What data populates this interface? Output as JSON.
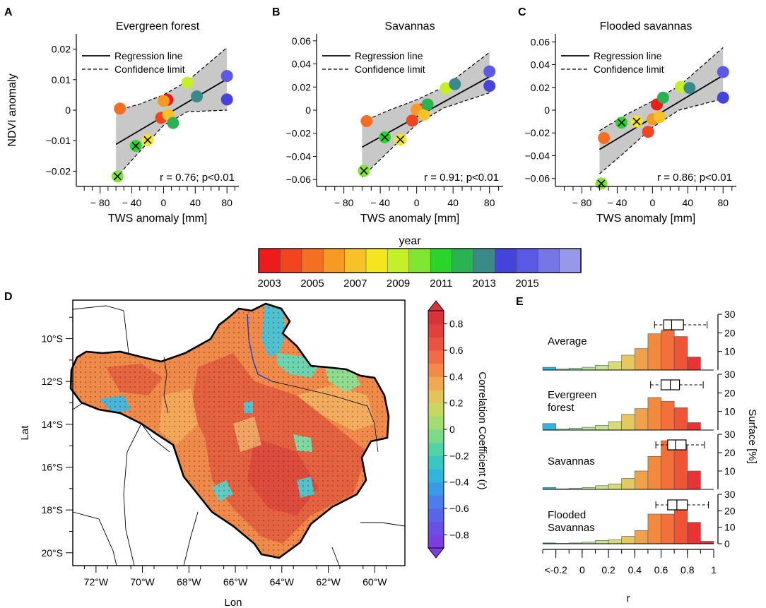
{
  "panel_letters": {
    "a": "A",
    "b": "B",
    "c": "C",
    "d": "D",
    "e": "E"
  },
  "scatter_common": {
    "xlabel": "TWS anomaly [mm]",
    "ylabel": "NDVI anomaly",
    "xticks": [
      -80,
      -40,
      0,
      40,
      80
    ],
    "xtick_labels": [
      "− 80",
      "− 40",
      "0",
      "40",
      "80"
    ],
    "legend_regression": "Regression line",
    "legend_confidence": "Confidence limit",
    "year_colors": [
      "#ee1b1b",
      "#f2451f",
      "#f46f22",
      "#f69a24",
      "#f7c229",
      "#f3e61e",
      "#c5ef26",
      "#7fe733",
      "#2ad52b",
      "#2bb253",
      "#3a8a8a",
      "#4444dd",
      "#5a5ae6",
      "#7676e6",
      "#9898ea"
    ]
  },
  "colorbar_year": {
    "title": "year",
    "labels": [
      "2003",
      "2005",
      "2007",
      "2009",
      "2011",
      "2013",
      "2015"
    ]
  },
  "chart_data": [
    {
      "type": "scatter",
      "title": "Evergreen forest",
      "stat": "r = 0.76; p<0.01",
      "xlim": [
        -110,
        95
      ],
      "ylim": [
        -0.025,
        0.025
      ],
      "yticks": [
        -0.02,
        -0.01,
        0,
        0.01,
        0.02
      ],
      "ytick_labels": [
        "−0.02",
        "−0.01",
        "0",
        "0.01",
        "0.02"
      ],
      "regression": {
        "x": [
          -60,
          80
        ],
        "y": [
          -0.0112,
          0.0102
        ]
      },
      "ci_upper": [
        [
          -60,
          -0.0002
        ],
        [
          -30,
          0.002
        ],
        [
          0,
          0.005
        ],
        [
          30,
          0.0095
        ],
        [
          80,
          0.0205
        ]
      ],
      "ci_lower": [
        [
          -60,
          -0.0222
        ],
        [
          -30,
          -0.0135
        ],
        [
          0,
          -0.005
        ],
        [
          30,
          -0.0005
        ],
        [
          80,
          0.0
        ]
      ],
      "points": [
        {
          "year": 2003,
          "x": 5,
          "y": 0.0034,
          "cross": false
        },
        {
          "year": 2004,
          "x": -3,
          "y": -0.0025,
          "cross": false
        },
        {
          "year": 2005,
          "x": -55,
          "y": 0.0005,
          "cross": false
        },
        {
          "year": 2006,
          "x": 0,
          "y": 0.003,
          "cross": false
        },
        {
          "year": 2007,
          "x": 6,
          "y": -0.0015,
          "cross": false
        },
        {
          "year": 2008,
          "x": -20,
          "y": -0.0098,
          "cross": true
        },
        {
          "year": 2009,
          "x": 30,
          "y": 0.009,
          "cross": false
        },
        {
          "year": 2010,
          "x": -58,
          "y": -0.0217,
          "cross": true
        },
        {
          "year": 2011,
          "x": -35,
          "y": -0.0117,
          "cross": true
        },
        {
          "year": 2012,
          "x": 12,
          "y": -0.0042,
          "cross": false
        },
        {
          "year": 2013,
          "x": 42,
          "y": 0.0045,
          "cross": false
        },
        {
          "year": 2014,
          "x": 80,
          "y": 0.0035,
          "cross": false
        },
        {
          "year": 2015,
          "x": 80,
          "y": 0.0112,
          "cross": false
        }
      ]
    },
    {
      "type": "scatter",
      "title": "Savannas",
      "stat": "r = 0.91; p<0.01",
      "xlim": [
        -110,
        95
      ],
      "ylim": [
        -0.066,
        0.066
      ],
      "yticks": [
        -0.06,
        -0.04,
        -0.02,
        0,
        0.02,
        0.04,
        0.06
      ],
      "ytick_labels": [
        "−0.06",
        "−0.04",
        "−0.02",
        "0",
        "0.02",
        "0.04",
        "0.06"
      ],
      "regression": {
        "x": [
          -60,
          80
        ],
        "y": [
          -0.032,
          0.029
        ]
      },
      "ci_upper": [
        [
          -60,
          -0.01
        ],
        [
          -30,
          0.0
        ],
        [
          0,
          0.009
        ],
        [
          30,
          0.02
        ],
        [
          80,
          0.05
        ]
      ],
      "ci_lower": [
        [
          -60,
          -0.058
        ],
        [
          -30,
          -0.035
        ],
        [
          0,
          -0.012
        ],
        [
          30,
          0.002
        ],
        [
          80,
          0.015
        ]
      ],
      "points": [
        {
          "year": 2003,
          "x": 5,
          "y": 0.0005,
          "cross": false
        },
        {
          "year": 2004,
          "x": -5,
          "y": -0.009,
          "cross": false
        },
        {
          "year": 2005,
          "x": -55,
          "y": -0.0095,
          "cross": false
        },
        {
          "year": 2006,
          "x": 0,
          "y": 0.0005,
          "cross": false
        },
        {
          "year": 2007,
          "x": 8,
          "y": -0.004,
          "cross": false
        },
        {
          "year": 2008,
          "x": -18,
          "y": -0.0255,
          "cross": true
        },
        {
          "year": 2009,
          "x": 32,
          "y": 0.019,
          "cross": false
        },
        {
          "year": 2010,
          "x": -58,
          "y": -0.0525,
          "cross": true
        },
        {
          "year": 2011,
          "x": -35,
          "y": -0.0235,
          "cross": true
        },
        {
          "year": 2012,
          "x": 12,
          "y": 0.005,
          "cross": false
        },
        {
          "year": 2013,
          "x": 42,
          "y": 0.0225,
          "cross": false
        },
        {
          "year": 2014,
          "x": 80,
          "y": 0.021,
          "cross": false
        },
        {
          "year": 2015,
          "x": 80,
          "y": 0.0335,
          "cross": false
        }
      ]
    },
    {
      "type": "scatter",
      "title": "Flooded savannas",
      "stat": "r = 0.86; p<0.01",
      "xlim": [
        -110,
        95
      ],
      "ylim": [
        -0.067,
        0.067
      ],
      "yticks": [
        -0.06,
        -0.04,
        -0.02,
        0,
        0.02,
        0.04,
        0.06
      ],
      "ytick_labels": [
        "−0.06",
        "−0.04",
        "−0.02",
        "0",
        "0.02",
        "0.04",
        "0.06"
      ],
      "regression": {
        "x": [
          -60,
          80
        ],
        "y": [
          -0.0345,
          0.0305
        ]
      },
      "ci_upper": [
        [
          -60,
          -0.018
        ],
        [
          -30,
          -0.004
        ],
        [
          0,
          0.008
        ],
        [
          30,
          0.021
        ],
        [
          80,
          0.055
        ]
      ],
      "ci_lower": [
        [
          -60,
          -0.056
        ],
        [
          -30,
          -0.036
        ],
        [
          0,
          -0.015
        ],
        [
          30,
          0.0
        ],
        [
          80,
          0.01
        ]
      ],
      "points": [
        {
          "year": 2003,
          "x": 5,
          "y": 0.005,
          "cross": false
        },
        {
          "year": 2004,
          "x": -5,
          "y": -0.019,
          "cross": false
        },
        {
          "year": 2005,
          "x": -55,
          "y": -0.0245,
          "cross": false
        },
        {
          "year": 2006,
          "x": 0,
          "y": -0.008,
          "cross": false
        },
        {
          "year": 2007,
          "x": 8,
          "y": -0.006,
          "cross": false
        },
        {
          "year": 2008,
          "x": -18,
          "y": -0.01,
          "cross": true
        },
        {
          "year": 2009,
          "x": 32,
          "y": 0.0205,
          "cross": false
        },
        {
          "year": 2010,
          "x": -58,
          "y": -0.0645,
          "cross": true
        },
        {
          "year": 2011,
          "x": -35,
          "y": -0.011,
          "cross": true
        },
        {
          "year": 2012,
          "x": 12,
          "y": 0.011,
          "cross": false
        },
        {
          "year": 2013,
          "x": 42,
          "y": 0.0195,
          "cross": false
        },
        {
          "year": 2014,
          "x": 80,
          "y": 0.011,
          "cross": false
        },
        {
          "year": 2015,
          "x": 80,
          "y": 0.0335,
          "cross": false
        }
      ]
    },
    {
      "type": "heatmap",
      "title": "",
      "xlabel": "Lon",
      "ylabel": "Lat",
      "xlim": [
        -73,
        -58.7
      ],
      "ylim": [
        -20.6,
        -8.2
      ],
      "x_tick_labels": [
        "72°W",
        "70°W",
        "68°W",
        "66°W",
        "64°W",
        "62°W",
        "60°W"
      ],
      "y_tick_labels": [
        "10°S",
        "12°S",
        "14°S",
        "16°S",
        "18°S",
        "20°S"
      ],
      "colorbar_label": "Correlation Coefficient (r)",
      "colorbar_ticks": [
        -0.8,
        -0.6,
        -0.4,
        -0.2,
        0,
        0.2,
        0.4,
        0.6,
        0.8
      ],
      "colorbar_tick_labels": [
        "−0.8",
        "−0.6",
        "−0.4",
        "−0.2",
        "0",
        "0.2",
        "0.4",
        "0.6",
        "0.8"
      ],
      "colorbar_range": [
        -0.9,
        0.9
      ],
      "colorbar_colors": [
        "#7b3fe0",
        "#6b4ee6",
        "#5a64e8",
        "#4a7fea",
        "#3c99e6",
        "#33b4dc",
        "#39c7c4",
        "#52d3a6",
        "#7bd98a",
        "#a2dc72",
        "#c6d862",
        "#e2c45a",
        "#f0a852",
        "#f28a4a",
        "#f06c44",
        "#ea5340",
        "#e2403d",
        "#d8333b"
      ]
    },
    {
      "type": "bar",
      "title": "",
      "xlabel": "r",
      "ylabel": "Surface [%]",
      "x_tick_labels": [
        "<-0.2",
        "0",
        "0.2",
        "0.4",
        "0.6",
        "0.8",
        "1"
      ],
      "y_tick_labels": [
        "0",
        "10",
        "20",
        "30"
      ],
      "ylim": [
        0,
        30
      ],
      "bin_edges": [
        -0.3,
        -0.2,
        -0.1,
        0.0,
        0.1,
        0.2,
        0.3,
        0.4,
        0.5,
        0.6,
        0.7,
        0.8,
        0.9,
        1.0
      ],
      "bin_colors": [
        "#34b5dc",
        "#7fd9b5",
        "#a0e2a4",
        "#b5e498",
        "#c7e58a",
        "#d8dc78",
        "#e4c860",
        "#f0a24a",
        "#f28b3f",
        "#f2703a",
        "#ef5437",
        "#e83434",
        "#e03133"
      ],
      "series": [
        {
          "name": "Average",
          "values": [
            1.5,
            0.5,
            1.0,
            1.5,
            2.5,
            4.5,
            8.0,
            11.5,
            19.5,
            21.5,
            18.0,
            7.0,
            0.0
          ]
        },
        {
          "name": "Evergreen\nforest",
          "values": [
            3.5,
            0.5,
            1.0,
            1.5,
            2.5,
            4.5,
            8.5,
            11.5,
            17.5,
            15.5,
            12.0,
            4.0,
            0.0
          ]
        },
        {
          "name": "Savannas",
          "values": [
            1.0,
            0.3,
            0.6,
            1.0,
            2.0,
            3.0,
            6.0,
            10.0,
            18.0,
            26.5,
            24.0,
            10.0,
            0.0
          ]
        },
        {
          "name": "Flooded\nSavannas",
          "values": [
            0.5,
            0.2,
            0.5,
            1.0,
            2.0,
            2.5,
            4.5,
            8.0,
            18.0,
            18.0,
            20.5,
            13.0,
            1.5
          ]
        }
      ],
      "boxplots": [
        {
          "whisker_low": 0.55,
          "q1": 0.62,
          "median": 0.68,
          "q3": 0.77,
          "whisker_high": 0.95
        },
        {
          "whisker_low": 0.52,
          "q1": 0.6,
          "median": 0.67,
          "q3": 0.74,
          "whisker_high": 0.92
        },
        {
          "whisker_low": 0.56,
          "q1": 0.65,
          "median": 0.71,
          "q3": 0.79,
          "whisker_high": 0.93
        },
        {
          "whisker_low": 0.56,
          "q1": 0.65,
          "median": 0.72,
          "q3": 0.8,
          "whisker_high": 0.96
        }
      ]
    }
  ]
}
